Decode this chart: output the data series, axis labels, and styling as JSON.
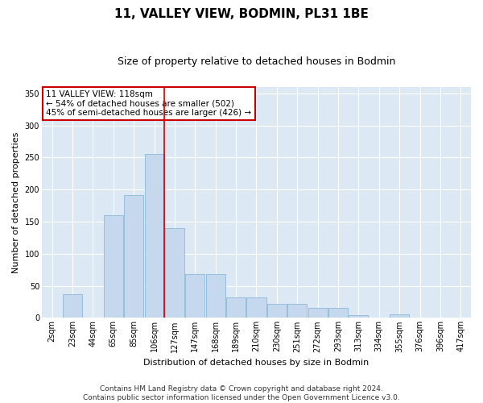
{
  "title": "11, VALLEY VIEW, BODMIN, PL31 1BE",
  "subtitle": "Size of property relative to detached houses in Bodmin",
  "xlabel": "Distribution of detached houses by size in Bodmin",
  "ylabel": "Number of detached properties",
  "footer": "Contains HM Land Registry data © Crown copyright and database right 2024.\nContains public sector information licensed under the Open Government Licence v3.0.",
  "categories": [
    "2sqm",
    "23sqm",
    "44sqm",
    "65sqm",
    "85sqm",
    "106sqm",
    "127sqm",
    "147sqm",
    "168sqm",
    "189sqm",
    "210sqm",
    "230sqm",
    "251sqm",
    "272sqm",
    "293sqm",
    "313sqm",
    "334sqm",
    "355sqm",
    "376sqm",
    "396sqm",
    "417sqm"
  ],
  "values": [
    1,
    37,
    0,
    160,
    192,
    255,
    140,
    68,
    68,
    32,
    32,
    22,
    22,
    15,
    15,
    4,
    0,
    5,
    0,
    1,
    0
  ],
  "bar_color": "#c5d8ed",
  "bar_edge_color": "#8db8d8",
  "vline_category_index": 5,
  "vline_color": "#cc0000",
  "annotation_text": "11 VALLEY VIEW: 118sqm\n← 54% of detached houses are smaller (502)\n45% of semi-detached houses are larger (426) →",
  "annotation_box_color": "#ffffff",
  "annotation_box_edge": "#cc0000",
  "ylim": [
    0,
    360
  ],
  "yticks": [
    0,
    50,
    100,
    150,
    200,
    250,
    300,
    350
  ],
  "plot_bg_color": "#dce9f5",
  "title_fontsize": 11,
  "subtitle_fontsize": 9,
  "axis_label_fontsize": 8,
  "tick_fontsize": 7,
  "footer_fontsize": 6.5,
  "annotation_fontsize": 7.5
}
